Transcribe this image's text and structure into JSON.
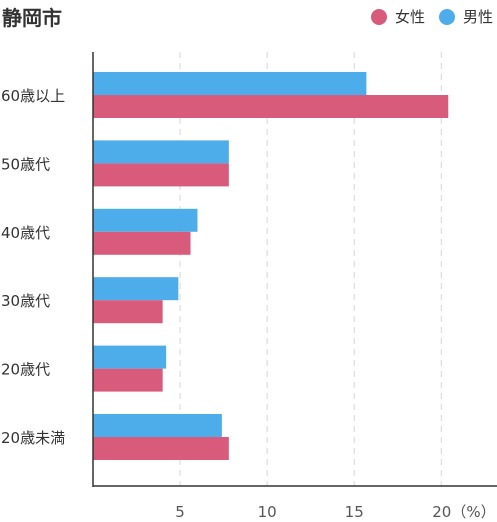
{
  "chart_data": {
    "type": "bar",
    "orientation": "horizontal",
    "title": "静岡市",
    "categories": [
      "60歳以上",
      "50歳代",
      "40歳代",
      "30歳代",
      "20歳代",
      "20歳未満"
    ],
    "series": [
      {
        "name": "男性",
        "color": "#4dacea",
        "values": [
          15.7,
          7.8,
          6.0,
          4.9,
          4.2,
          7.4
        ]
      },
      {
        "name": "女性",
        "color": "#d95b7c",
        "values": [
          20.4,
          7.8,
          5.6,
          4.0,
          4.0,
          7.8
        ]
      }
    ],
    "legend_order": [
      "女性",
      "男性"
    ],
    "legend_position": "top-right",
    "xticks": [
      5,
      10,
      15,
      20
    ],
    "xtick_labels": [
      "5",
      "10",
      "15",
      "20（%）"
    ],
    "xlim": [
      0,
      23.2
    ],
    "grid": true
  }
}
